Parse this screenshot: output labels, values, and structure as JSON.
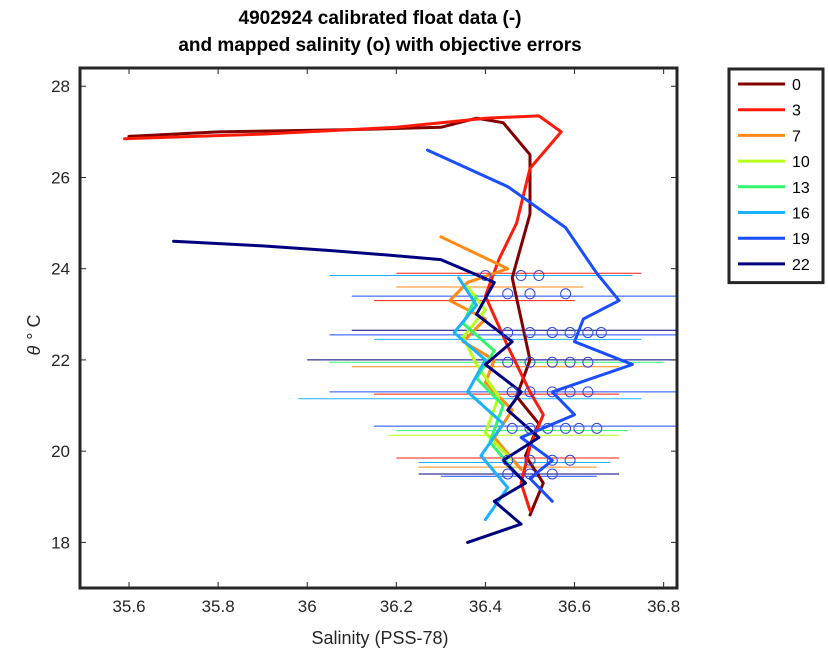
{
  "chart_data": {
    "type": "line",
    "title": [
      "4902924 calibrated float data (-)",
      "and mapped salinity (o) with objective errors"
    ],
    "xlabel": "Salinity (PSS-78)",
    "ylabel_symbol": "θ",
    "ylabel_unit": "° C",
    "xlim": [
      35.49,
      36.83
    ],
    "ylim": [
      17.0,
      28.4
    ],
    "xticks": [
      35.6,
      35.8,
      36,
      36.2,
      36.4,
      36.6,
      36.8
    ],
    "xtick_labels": [
      "35.6",
      "35.8",
      "36",
      "36.2",
      "36.4",
      "36.6",
      "36.8"
    ],
    "yticks": [
      18,
      20,
      22,
      24,
      26,
      28
    ],
    "ytick_labels": [
      "18",
      "20",
      "22",
      "24",
      "26",
      "28"
    ],
    "grid": false,
    "legend_position": "outside-top-right",
    "legend": [
      {
        "label": "0",
        "color": "#800000"
      },
      {
        "label": "3",
        "color": "#ff1a0a"
      },
      {
        "label": "7",
        "color": "#ff8a14"
      },
      {
        "label": "10",
        "color": "#b5ff1a"
      },
      {
        "label": "13",
        "color": "#33f56b"
      },
      {
        "label": "16",
        "color": "#1ab2ff"
      },
      {
        "label": "19",
        "color": "#1a4dff"
      },
      {
        "label": "22",
        "color": "#00007f"
      }
    ],
    "series": [
      {
        "label": "0",
        "color": "#800000",
        "x": [
          35.6,
          35.8,
          36.1,
          36.3,
          36.38,
          36.44,
          36.5,
          36.5,
          36.46,
          36.5,
          36.47,
          36.52,
          36.49,
          36.53,
          36.5
        ],
        "y": [
          26.9,
          27.0,
          27.05,
          27.1,
          27.3,
          27.2,
          26.5,
          25.2,
          23.8,
          22.0,
          21.2,
          20.6,
          19.9,
          19.3,
          18.6
        ]
      },
      {
        "label": "3",
        "color": "#ff1a0a",
        "x": [
          35.59,
          35.9,
          36.2,
          36.4,
          36.52,
          36.57,
          36.5,
          36.47,
          36.43,
          36.4,
          36.45,
          36.5,
          36.53,
          36.5,
          36.48,
          36.5
        ],
        "y": [
          26.85,
          26.95,
          27.1,
          27.3,
          27.35,
          27.0,
          26.2,
          25.0,
          24.2,
          23.4,
          22.3,
          21.3,
          20.8,
          20.1,
          19.3,
          18.7
        ]
      },
      {
        "label": "7",
        "color": "#ff8a14",
        "x": [
          36.3,
          36.45,
          36.36,
          36.32,
          36.4,
          36.35,
          36.42,
          36.4,
          36.46,
          36.42,
          36.48
        ],
        "y": [
          24.7,
          24.0,
          23.7,
          23.3,
          22.9,
          22.4,
          22.0,
          21.5,
          20.9,
          20.3,
          19.6
        ]
      },
      {
        "label": "10",
        "color": "#b5ff1a",
        "x": [
          36.36,
          36.4,
          36.35,
          36.38,
          36.43,
          36.4,
          36.46
        ],
        "y": [
          23.6,
          23.1,
          22.5,
          21.9,
          21.2,
          20.4,
          19.8
        ]
      },
      {
        "label": "13",
        "color": "#33f56b",
        "x": [
          36.38,
          36.35,
          36.42,
          36.38,
          36.44,
          36.41,
          36.47
        ],
        "y": [
          23.4,
          22.8,
          22.2,
          21.6,
          21.0,
          20.2,
          19.5
        ]
      },
      {
        "label": "16",
        "color": "#1ab2ff",
        "x": [
          36.34,
          36.38,
          36.33,
          36.4,
          36.36,
          36.44,
          36.39,
          36.45,
          36.4
        ],
        "y": [
          23.8,
          23.2,
          22.6,
          22.0,
          21.3,
          20.6,
          19.9,
          19.2,
          18.5
        ]
      },
      {
        "label": "19",
        "color": "#1a4dff",
        "x": [
          36.27,
          36.45,
          36.58,
          36.65,
          36.7,
          36.62,
          36.6,
          36.73,
          36.55,
          36.6,
          36.48,
          36.55,
          36.5,
          36.55
        ],
        "y": [
          26.6,
          25.8,
          24.9,
          23.9,
          23.3,
          22.9,
          22.4,
          21.9,
          21.3,
          20.8,
          20.3,
          19.8,
          19.4,
          18.9
        ]
      },
      {
        "label": "22",
        "color": "#00007f",
        "x": [
          35.7,
          35.9,
          36.05,
          36.18,
          36.3,
          36.42,
          36.38,
          36.46,
          36.4,
          36.48,
          36.45,
          36.52,
          36.44,
          36.49,
          36.42,
          36.48,
          36.36
        ],
        "y": [
          24.6,
          24.5,
          24.4,
          24.3,
          24.2,
          23.7,
          23.0,
          22.4,
          21.9,
          21.3,
          20.9,
          20.3,
          19.8,
          19.3,
          18.9,
          18.4,
          18.0
        ]
      }
    ],
    "mapped_salinity": [
      {
        "theta": 23.85,
        "s": [
          36.4,
          36.48,
          36.52
        ]
      },
      {
        "theta": 23.45,
        "s": [
          36.45,
          36.5,
          36.58
        ]
      },
      {
        "theta": 22.6,
        "s": [
          36.45,
          36.5,
          36.55,
          36.59,
          36.63,
          36.66
        ]
      },
      {
        "theta": 21.95,
        "s": [
          36.45,
          36.5,
          36.55,
          36.59,
          36.63
        ]
      },
      {
        "theta": 21.3,
        "s": [
          36.46,
          36.5,
          36.55,
          36.59,
          36.63
        ]
      },
      {
        "theta": 20.5,
        "s": [
          36.46,
          36.5,
          36.54,
          36.58,
          36.61,
          36.65
        ]
      },
      {
        "theta": 19.8,
        "s": [
          36.45,
          36.5,
          36.55,
          36.59
        ]
      },
      {
        "theta": 19.5,
        "s": [
          36.45,
          36.5,
          36.55
        ]
      }
    ],
    "objective_errors": [
      {
        "theta": 23.9,
        "s_min": 36.2,
        "s_max": 36.75,
        "color": "#ff1a0a"
      },
      {
        "theta": 23.85,
        "s_min": 36.05,
        "s_max": 36.73,
        "color": "#1ab2ff"
      },
      {
        "theta": 23.6,
        "s_min": 36.2,
        "s_max": 36.62,
        "color": "#ff8a14"
      },
      {
        "theta": 23.4,
        "s_min": 36.1,
        "s_max": 36.83,
        "color": "#1a4dff"
      },
      {
        "theta": 23.3,
        "s_min": 36.15,
        "s_max": 36.6,
        "color": "#ff1a0a"
      },
      {
        "theta": 22.65,
        "s_min": 36.1,
        "s_max": 36.83,
        "color": "#00007f"
      },
      {
        "theta": 22.55,
        "s_min": 36.05,
        "s_max": 36.83,
        "color": "#1a4dff"
      },
      {
        "theta": 22.45,
        "s_min": 36.15,
        "s_max": 36.75,
        "color": "#1ab2ff"
      },
      {
        "theta": 22.0,
        "s_min": 36.0,
        "s_max": 36.83,
        "color": "#00007f"
      },
      {
        "theta": 21.95,
        "s_min": 36.05,
        "s_max": 36.8,
        "color": "#33f56b"
      },
      {
        "theta": 21.85,
        "s_min": 36.1,
        "s_max": 36.7,
        "color": "#ff8a14"
      },
      {
        "theta": 21.3,
        "s_min": 36.05,
        "s_max": 36.83,
        "color": "#1a4dff"
      },
      {
        "theta": 21.25,
        "s_min": 36.15,
        "s_max": 36.7,
        "color": "#ff1a0a"
      },
      {
        "theta": 21.15,
        "s_min": 35.98,
        "s_max": 36.75,
        "color": "#1ab2ff"
      },
      {
        "theta": 20.55,
        "s_min": 36.15,
        "s_max": 36.83,
        "color": "#1a4dff"
      },
      {
        "theta": 20.45,
        "s_min": 36.2,
        "s_max": 36.72,
        "color": "#33f56b"
      },
      {
        "theta": 20.35,
        "s_min": 36.18,
        "s_max": 36.7,
        "color": "#b5ff1a"
      },
      {
        "theta": 19.85,
        "s_min": 36.2,
        "s_max": 36.7,
        "color": "#ff1a0a"
      },
      {
        "theta": 19.75,
        "s_min": 36.25,
        "s_max": 36.68,
        "color": "#1ab2ff"
      },
      {
        "theta": 19.65,
        "s_min": 36.25,
        "s_max": 36.65,
        "color": "#ff8a14"
      },
      {
        "theta": 19.5,
        "s_min": 36.25,
        "s_max": 36.7,
        "color": "#00007f"
      },
      {
        "theta": 19.45,
        "s_min": 36.3,
        "s_max": 36.65,
        "color": "#1a4dff"
      }
    ]
  }
}
